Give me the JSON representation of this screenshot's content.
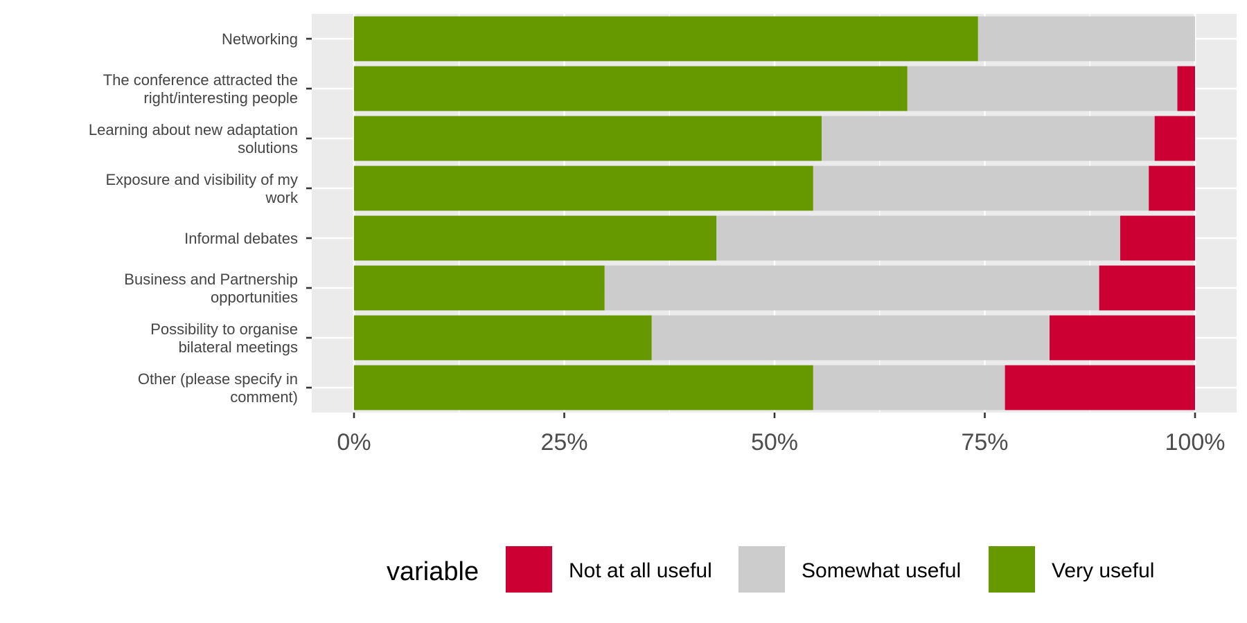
{
  "chart_data": {
    "type": "bar",
    "orientation": "horizontal",
    "stacked": true,
    "categories": [
      "Networking",
      "The conference attracted the right/interesting people",
      "Learning about new adaptation solutions",
      "Exposure and visibility of my work",
      "Informal debates",
      "Business and Partnership opportunities",
      "Possibility to organise bilateral meetings",
      "Other (please specify in comment)"
    ],
    "category_lines": [
      [
        "Networking"
      ],
      [
        "The conference attracted the",
        "right/interesting people"
      ],
      [
        "Learning about new adaptation",
        "solutions"
      ],
      [
        "Exposure and visibility of my",
        "work"
      ],
      [
        "Informal debates"
      ],
      [
        "Business and Partnership",
        "opportunities"
      ],
      [
        "Possibility to organise",
        "bilateral meetings"
      ],
      [
        "Other (please specify in",
        "comment)"
      ]
    ],
    "series": [
      {
        "name": "Very useful",
        "color": "#669900",
        "values": [
          74.2,
          65.8,
          55.6,
          54.6,
          43.1,
          29.8,
          35.4,
          54.6
        ]
      },
      {
        "name": "Somewhat useful",
        "color": "#cccccc",
        "values": [
          25.8,
          32.1,
          39.6,
          39.9,
          48.0,
          58.8,
          47.3,
          22.8
        ]
      },
      {
        "name": "Not at all useful",
        "color": "#cc0033",
        "values": [
          0.0,
          2.1,
          4.8,
          5.5,
          8.9,
          11.4,
          17.3,
          22.6
        ]
      }
    ],
    "x_ticks": [
      "0%",
      "25%",
      "50%",
      "75%",
      "100%"
    ],
    "xlim": [
      0,
      100
    ],
    "grid": true,
    "legend": {
      "title": "variable",
      "position": "bottom",
      "items": [
        {
          "label": "Not at all useful",
          "color": "#cc0033"
        },
        {
          "label": "Somewhat useful",
          "color": "#cccccc"
        },
        {
          "label": "Very useful",
          "color": "#669900"
        }
      ]
    },
    "title": "",
    "xlabel": "",
    "ylabel": ""
  }
}
